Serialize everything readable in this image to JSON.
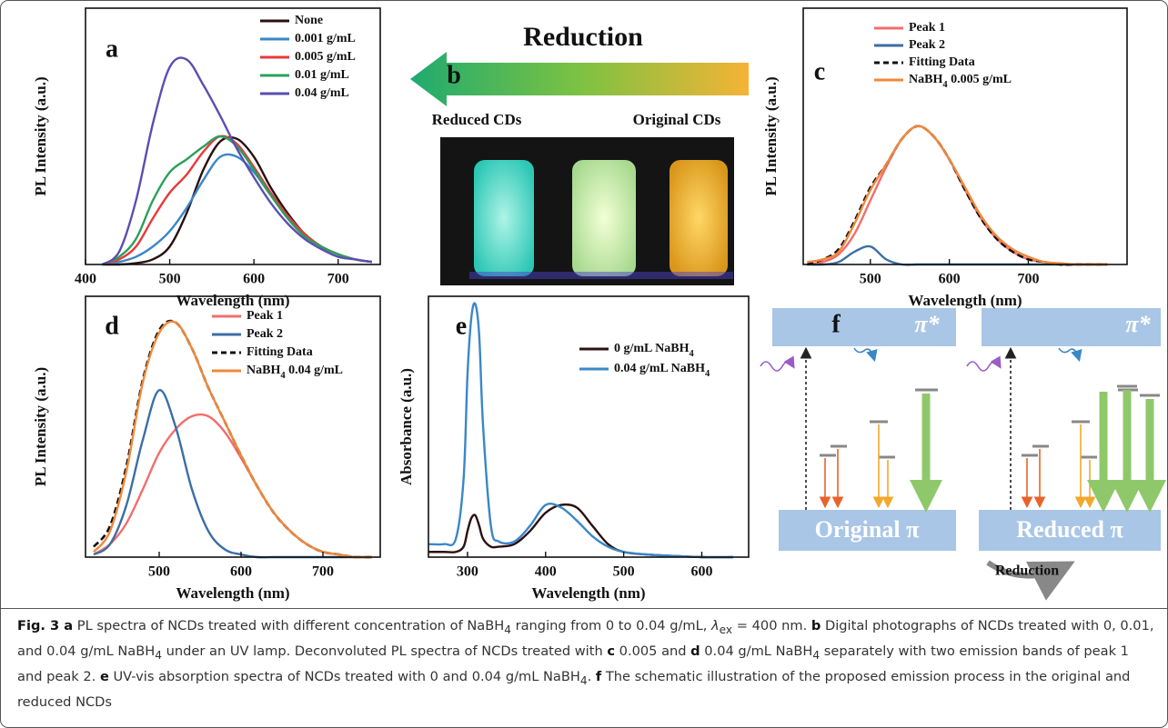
{
  "chart_data": [
    {
      "type": "line",
      "panel": "a",
      "ylabel": "PL Intensity (a.u.)",
      "xlabel": "Wavelength (nm)",
      "x": [
        420,
        440,
        460,
        480,
        500,
        520,
        540,
        560,
        580,
        600,
        620,
        640,
        660,
        680,
        700,
        720,
        740
      ],
      "xlim": [
        400,
        750
      ],
      "xticks": [
        400,
        500,
        600,
        700
      ],
      "ylim": [
        0,
        1
      ],
      "legend": "upper right",
      "series": [
        {
          "name": "None",
          "color": "#2b1010",
          "values": [
            0,
            0,
            0.005,
            0.02,
            0.07,
            0.2,
            0.37,
            0.48,
            0.49,
            0.42,
            0.3,
            0.2,
            0.12,
            0.07,
            0.04,
            0.02,
            0.01
          ]
        },
        {
          "name": "0.001 g/mL",
          "color": "#3a87c8",
          "values": [
            0,
            0.01,
            0.03,
            0.07,
            0.13,
            0.22,
            0.33,
            0.42,
            0.42,
            0.36,
            0.27,
            0.19,
            0.12,
            0.07,
            0.04,
            0.02,
            0.01
          ]
        },
        {
          "name": "0.005 g/mL",
          "color": "#e8393a",
          "values": [
            0,
            0.02,
            0.07,
            0.18,
            0.28,
            0.35,
            0.44,
            0.5,
            0.47,
            0.38,
            0.28,
            0.19,
            0.12,
            0.07,
            0.04,
            0.02,
            0.01
          ]
        },
        {
          "name": "0.01 g/mL",
          "color": "#2aa05a",
          "values": [
            0,
            0.03,
            0.1,
            0.25,
            0.36,
            0.41,
            0.46,
            0.5,
            0.46,
            0.37,
            0.27,
            0.18,
            0.11,
            0.07,
            0.04,
            0.02,
            0.01
          ]
        },
        {
          "name": "0.04 g/mL",
          "color": "#5a4fb0",
          "values": [
            0,
            0.05,
            0.25,
            0.55,
            0.77,
            0.8,
            0.7,
            0.58,
            0.45,
            0.34,
            0.24,
            0.16,
            0.1,
            0.06,
            0.03,
            0.02,
            0.01
          ]
        }
      ]
    },
    {
      "type": "line",
      "panel": "c",
      "ylabel": "PL Intensity (a.u.)",
      "xlabel": "Wavelength (nm)",
      "x": [
        420,
        440,
        460,
        480,
        500,
        520,
        540,
        560,
        580,
        600,
        620,
        640,
        660,
        680,
        700,
        720,
        740,
        760,
        780,
        800
      ],
      "xlim": [
        415,
        825
      ],
      "xticks": [
        500,
        600,
        700
      ],
      "ylim": [
        0,
        1
      ],
      "legend": "upper left",
      "series": [
        {
          "name": "Peak 1",
          "color": "#f26d6d",
          "values": [
            0,
            0.01,
            0.04,
            0.12,
            0.25,
            0.38,
            0.49,
            0.54,
            0.5,
            0.41,
            0.29,
            0.18,
            0.1,
            0.05,
            0.02,
            0.01,
            0,
            0,
            0,
            0
          ]
        },
        {
          "name": "Peak 2",
          "color": "#3b6ea5",
          "values": [
            0,
            0,
            0.01,
            0.05,
            0.07,
            0.02,
            0,
            0,
            0,
            0,
            0,
            0,
            0,
            0,
            0,
            0,
            0,
            0,
            0,
            0
          ]
        },
        {
          "name": "Fitting Data",
          "color": "#111111",
          "dash": true,
          "values": [
            0,
            0.02,
            0.06,
            0.17,
            0.3,
            0.39,
            0.49,
            0.54,
            0.5,
            0.41,
            0.29,
            0.18,
            0.1,
            0.05,
            0.02,
            0.01,
            0,
            0,
            0,
            0
          ]
        },
        {
          "name": "NaBH4 0.005 g/mL",
          "color": "#f0883a",
          "values": [
            0.01,
            0.02,
            0.05,
            0.16,
            0.29,
            0.39,
            0.49,
            0.54,
            0.5,
            0.41,
            0.3,
            0.19,
            0.11,
            0.06,
            0.03,
            0.01,
            0.005,
            0,
            0,
            0
          ]
        }
      ]
    },
    {
      "type": "line",
      "panel": "d",
      "ylabel": "PL Intensity (a.u.)",
      "xlabel": "Wavelength (nm)",
      "x": [
        420,
        440,
        460,
        480,
        500,
        520,
        540,
        560,
        580,
        600,
        620,
        640,
        660,
        680,
        700,
        720,
        740,
        760
      ],
      "xlim": [
        410,
        770
      ],
      "xticks": [
        500,
        600,
        700
      ],
      "ylim": [
        0,
        1
      ],
      "legend": "upper right",
      "series": [
        {
          "name": "Peak 1",
          "color": "#f26d6d",
          "values": [
            0.01,
            0.05,
            0.13,
            0.26,
            0.4,
            0.49,
            0.54,
            0.54,
            0.48,
            0.38,
            0.27,
            0.17,
            0.1,
            0.05,
            0.02,
            0.01,
            0,
            0
          ]
        },
        {
          "name": "Peak 2",
          "color": "#3b6ea5",
          "values": [
            0.01,
            0.05,
            0.2,
            0.45,
            0.64,
            0.5,
            0.26,
            0.1,
            0.03,
            0.01,
            0,
            0,
            0,
            0,
            0,
            0,
            0,
            0
          ]
        },
        {
          "name": "Fitting Data",
          "color": "#111111",
          "dash": true,
          "values": [
            0.04,
            0.12,
            0.35,
            0.68,
            0.87,
            0.9,
            0.8,
            0.65,
            0.52,
            0.39,
            0.27,
            0.17,
            0.1,
            0.05,
            0.02,
            0.01,
            0,
            0
          ]
        },
        {
          "name": "NaBH4 0.04 g/mL",
          "color": "#f0883a",
          "values": [
            0.02,
            0.1,
            0.33,
            0.67,
            0.86,
            0.9,
            0.8,
            0.65,
            0.52,
            0.39,
            0.27,
            0.17,
            0.1,
            0.05,
            0.02,
            0.01,
            0,
            0
          ]
        }
      ]
    },
    {
      "type": "line",
      "panel": "e",
      "ylabel": "Absorbance (a.u.)",
      "xlabel": "Wavelength (nm)",
      "x": [
        250,
        270,
        285,
        295,
        300,
        305,
        310,
        315,
        320,
        330,
        340,
        360,
        380,
        400,
        420,
        440,
        460,
        480,
        500,
        530,
        560,
        600,
        640
      ],
      "xlim": [
        250,
        660
      ],
      "xticks": [
        300,
        400,
        500,
        600
      ],
      "ylim": [
        0,
        1
      ],
      "legend": "upper right",
      "series": [
        {
          "name": "0 g/mL NaBH4",
          "color": "#2b1010",
          "values": [
            0.02,
            0.02,
            0.02,
            0.04,
            0.1,
            0.15,
            0.16,
            0.12,
            0.07,
            0.04,
            0.04,
            0.05,
            0.1,
            0.17,
            0.2,
            0.19,
            0.12,
            0.05,
            0.02,
            0.01,
            0.005,
            0,
            0
          ]
        },
        {
          "name": "0.04 g/mL NaBH4",
          "color": "#3a87c8",
          "values": [
            0.05,
            0.05,
            0.07,
            0.3,
            0.7,
            0.92,
            0.97,
            0.85,
            0.5,
            0.12,
            0.06,
            0.06,
            0.12,
            0.2,
            0.19,
            0.14,
            0.08,
            0.04,
            0.02,
            0.01,
            0.005,
            0,
            0
          ]
        }
      ]
    }
  ],
  "photo": {
    "panel": "b",
    "arrow_label": "Reduction",
    "left_label": "Reduced CDs",
    "right_label": "Original CDs"
  },
  "diagram": {
    "panel": "f",
    "excited_left": "π*",
    "excited_right": "π*",
    "ground_left": "Original  π",
    "ground_right": "Reduced π",
    "process": "Reduction"
  },
  "caption": [
    "Fig. 3 a",
    " PL spectra of NCDs treated with different concentration of NaBH",
    "4",
    " ranging from 0 to 0.04 g/mL, ",
    "λ",
    "ex",
    " = 400 nm. ",
    "b",
    " Digital photographs of NCDs treated with 0, 0.01, and 0.04 g/mL NaBH",
    "4",
    " under an UV lamp. Deconvoluted PL spectra of NCDs treated with ",
    "c",
    " 0.005 and ",
    "d",
    " 0.04 g/mL NaBH",
    "4",
    " separately with two emission bands of peak 1 and peak 2. ",
    "e",
    " UV-vis absorption spectra of NCDs treated with 0 and 0.04 g/mL NaBH",
    "4",
    ". ",
    "f",
    " The schematic illustration of the proposed emission process in the original and reduced NCDs"
  ]
}
